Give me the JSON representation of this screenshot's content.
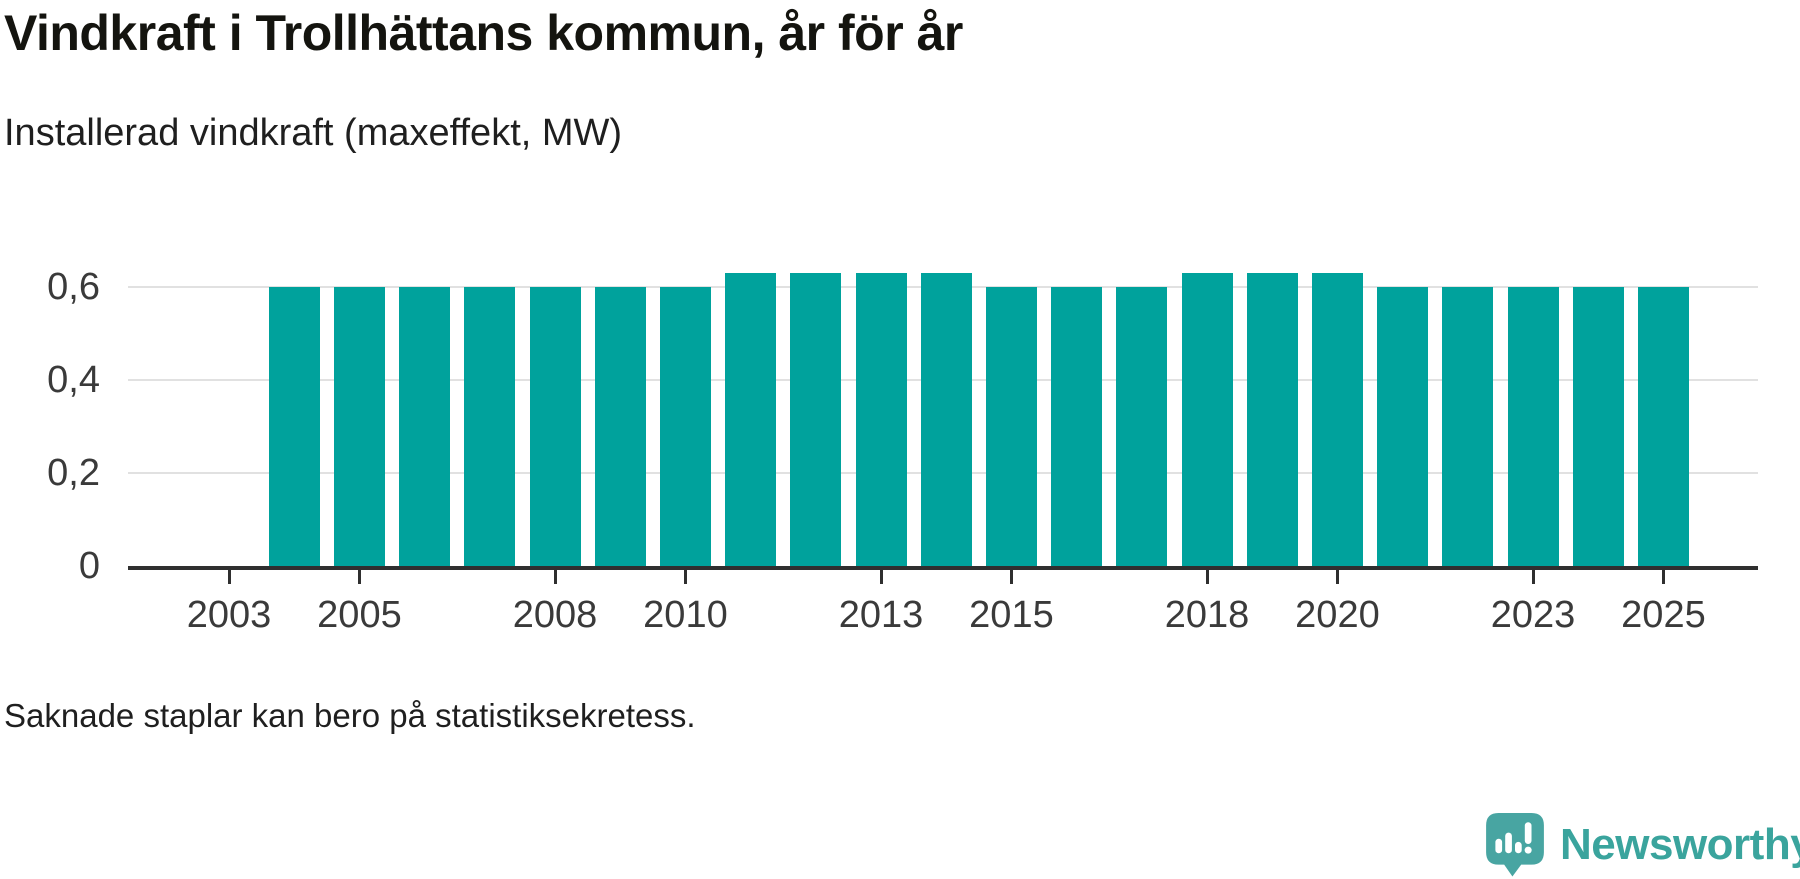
{
  "header": {
    "title": "Vindkraft i Trollhättans kommun, år för år",
    "subtitle": "Installerad vindkraft (maxeffekt, MW)"
  },
  "footnote": {
    "text": "Saknade staplar kan bero på statistiksekretess."
  },
  "branding": {
    "wordmark": "Newsworthy",
    "logo_icon": "speech-bubble-bar-chart-exclamation"
  },
  "colors": {
    "bar": "#00a29c",
    "grid": "#e1e1e1",
    "axis": "#2f2f2f",
    "ticktext": "#3a3a3a",
    "title": "#14140f",
    "subtext": "#1f1f1f",
    "logo": "#48a5a2",
    "wordmark": "#3aa49d"
  },
  "chart_data": {
    "type": "bar",
    "title": "Vindkraft i Trollhättans kommun, år för år",
    "subtitle": "Installerad vindkraft (maxeffekt, MW)",
    "ylabel": "Installerad vindkraft (maxeffekt, MW)",
    "xlabel": "",
    "unit": "MW",
    "x": [
      2004,
      2005,
      2006,
      2007,
      2008,
      2009,
      2010,
      2011,
      2012,
      2013,
      2014,
      2015,
      2016,
      2017,
      2018,
      2019,
      2020,
      2021,
      2022,
      2023,
      2024,
      2025
    ],
    "values": [
      0.6,
      0.6,
      0.6,
      0.6,
      0.6,
      0.6,
      0.6,
      0.63,
      0.63,
      0.63,
      0.63,
      0.6,
      0.6,
      0.6,
      0.63,
      0.63,
      0.63,
      0.6,
      0.6,
      0.6,
      0.6,
      0.6
    ],
    "missing_years": [
      2003
    ],
    "xticks": [
      2003,
      2005,
      2008,
      2010,
      2013,
      2015,
      2018,
      2020,
      2023,
      2025
    ],
    "yticks": [
      0,
      0.2,
      0.4,
      0.6
    ],
    "ytick_labels": [
      "0",
      "0,2",
      "0,4",
      "0,6"
    ],
    "ylim": [
      0,
      0.7
    ],
    "xlim": [
      2001.45,
      2026.45
    ],
    "grid": "horizontal",
    "legend": "none"
  }
}
